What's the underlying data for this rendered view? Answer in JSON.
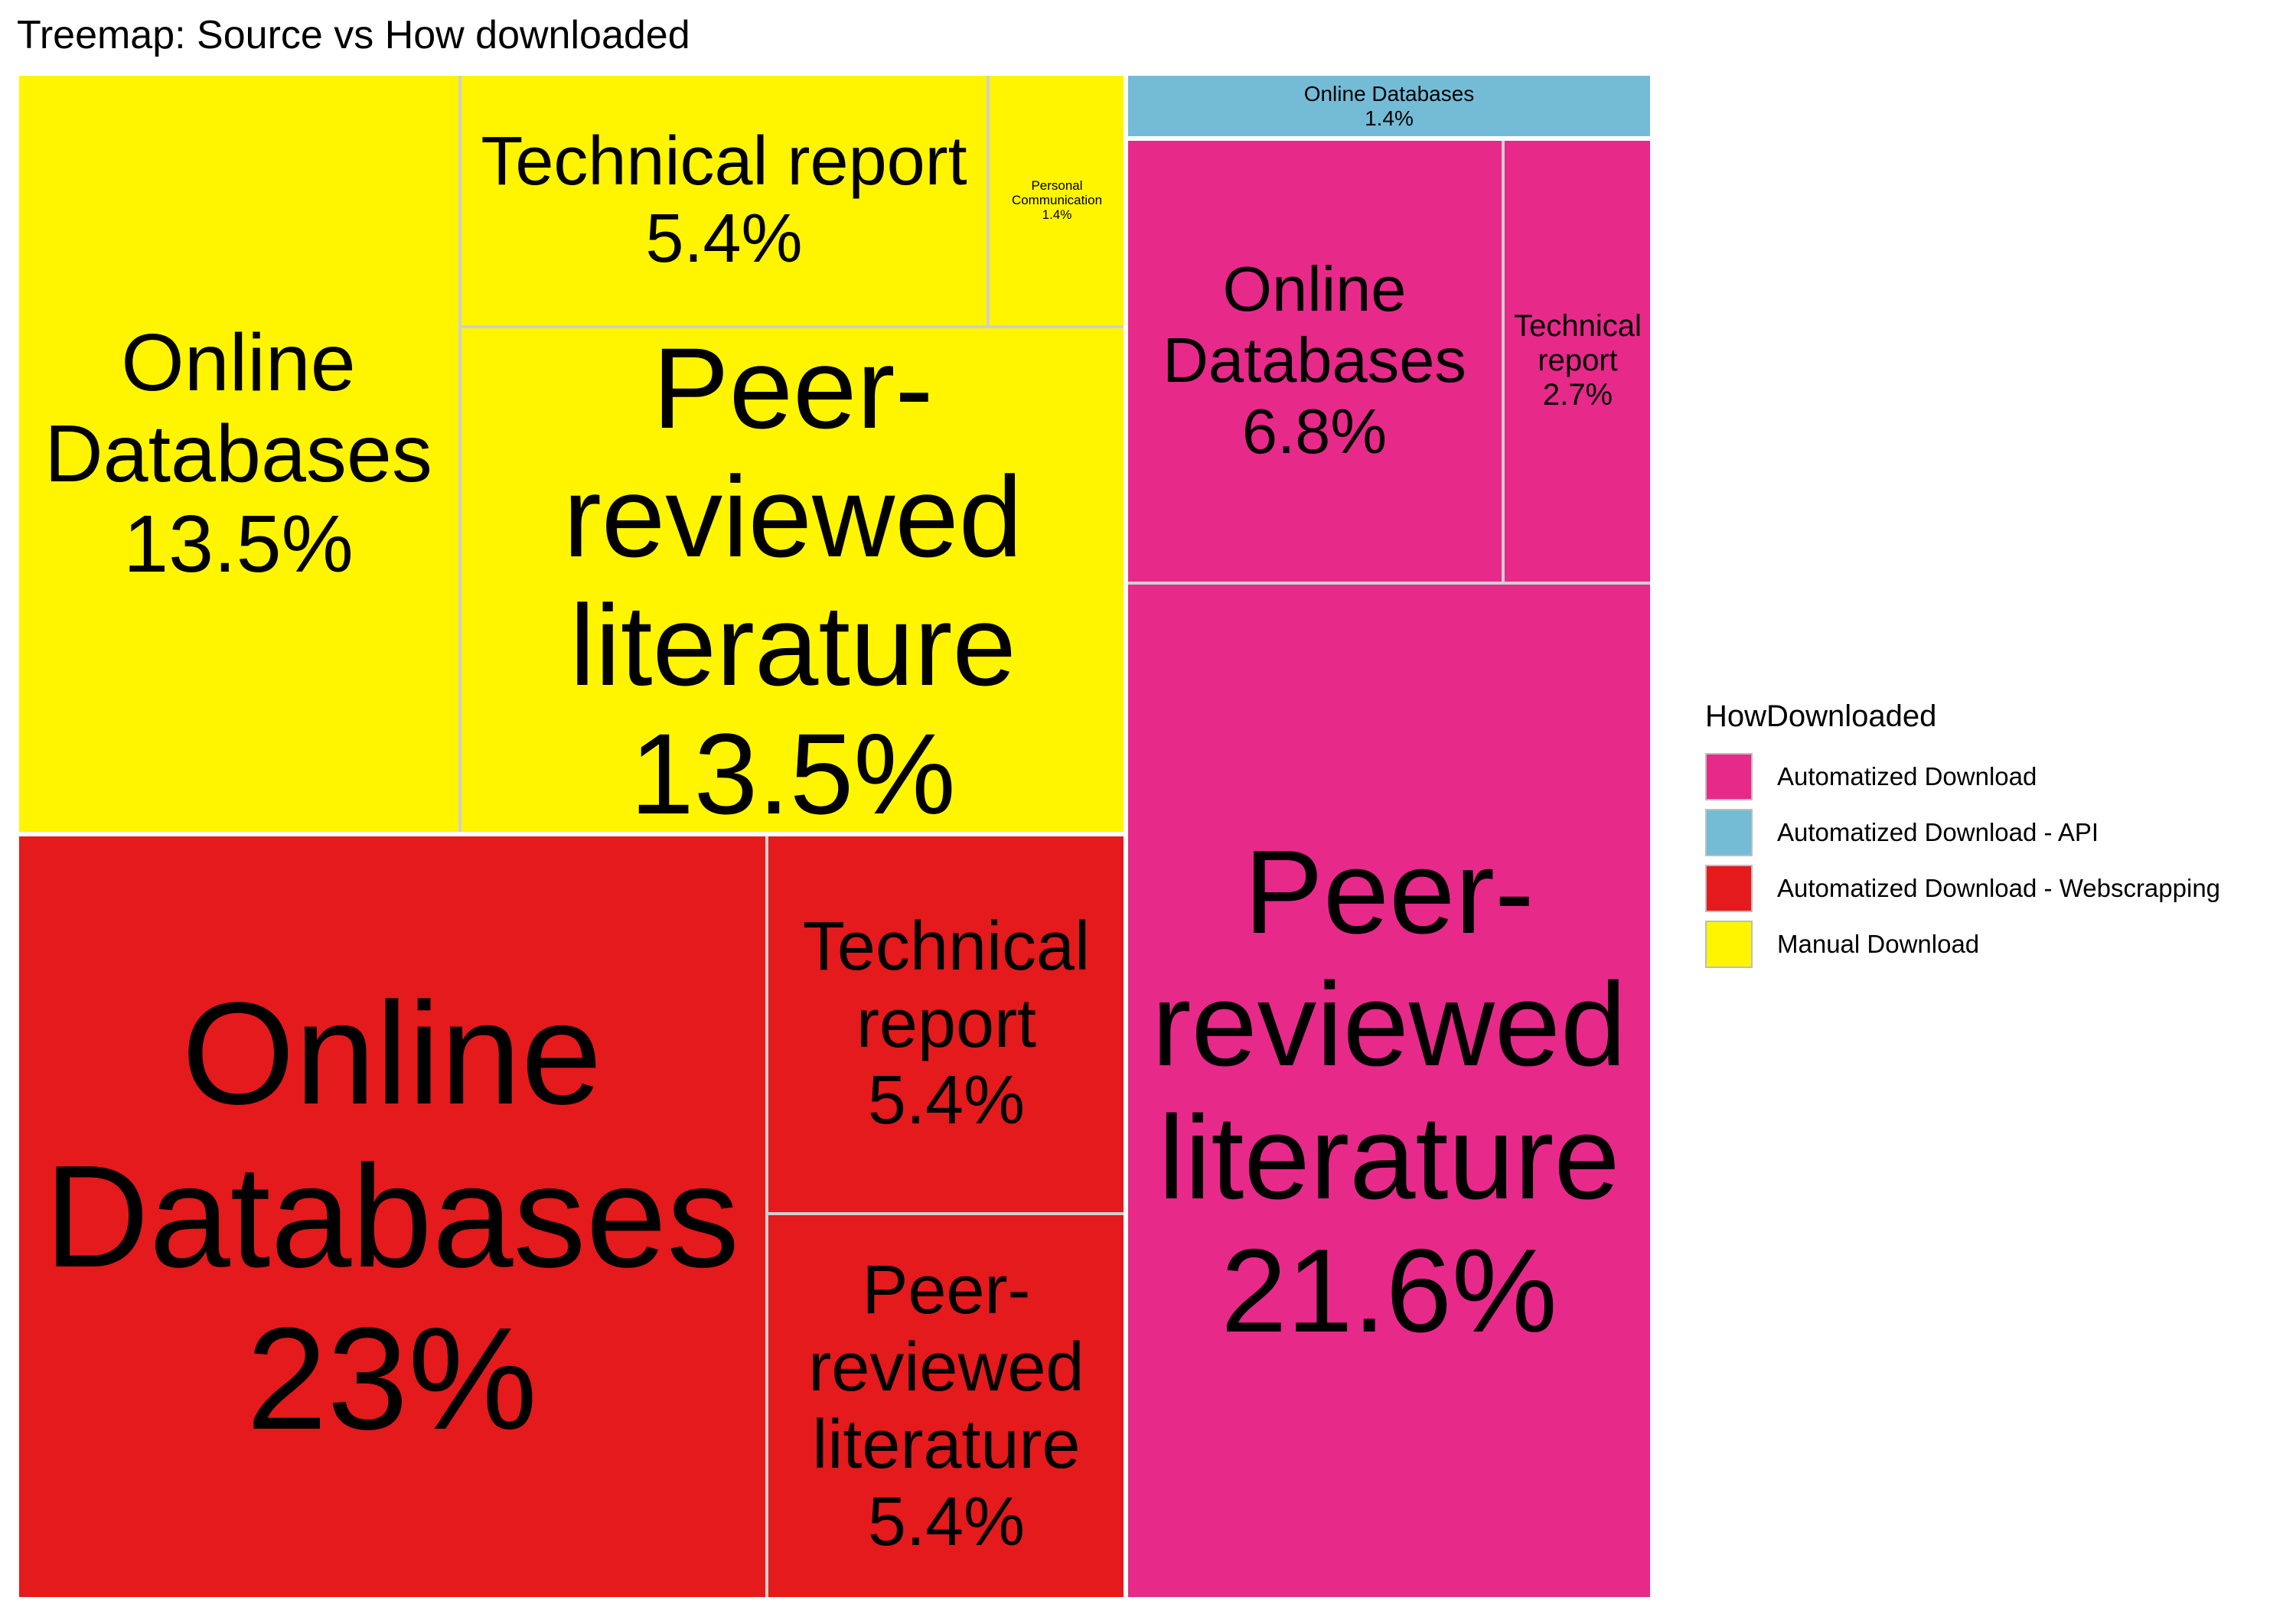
{
  "chart_data": {
    "type": "treemap",
    "title": "Treemap: Source vs How downloaded",
    "legend": {
      "title": "HowDownloaded",
      "position": "right",
      "entries": [
        {
          "label": "Automatized Download",
          "color": "#E7298A"
        },
        {
          "label": "Automatized Download - API",
          "color": "#74BCD6"
        },
        {
          "label": "Automatized Download - Webscrapping",
          "color": "#E41A1C"
        },
        {
          "label": "Manual Download",
          "color": "#FFF500"
        }
      ]
    },
    "groups": [
      {
        "name": "Automatized Download - Webscrapping",
        "color": "#E41A1C",
        "tiles": [
          {
            "name": "Online Databases",
            "value": 23,
            "label": "23%"
          },
          {
            "name": "Technical report",
            "value": 5.4,
            "label": "5.4%"
          },
          {
            "name": "Peer-reviewed literature",
            "value": 5.4,
            "label": "5.4%"
          }
        ]
      },
      {
        "name": "Manual Download",
        "color": "#FFF500",
        "tiles": [
          {
            "name": "Online Databases",
            "value": 13.5,
            "label": "13.5%"
          },
          {
            "name": "Peer-reviewed literature",
            "value": 13.5,
            "label": "13.5%"
          },
          {
            "name": "Technical report",
            "value": 5.4,
            "label": "5.4%"
          },
          {
            "name": "Personal Communication",
            "value": 1.4,
            "label": "1.4%"
          }
        ]
      },
      {
        "name": "Automatized Download",
        "color": "#E7298A",
        "tiles": [
          {
            "name": "Peer-reviewed literature",
            "value": 21.6,
            "label": "21.6%"
          },
          {
            "name": "Online Databases",
            "value": 6.8,
            "label": "6.8%"
          },
          {
            "name": "Technical report",
            "value": 2.7,
            "label": "2.7%"
          }
        ]
      },
      {
        "name": "Automatized Download - API",
        "color": "#74BCD6",
        "tiles": [
          {
            "name": "Online Databases",
            "value": 1.4,
            "label": "1.4%"
          }
        ]
      }
    ]
  }
}
